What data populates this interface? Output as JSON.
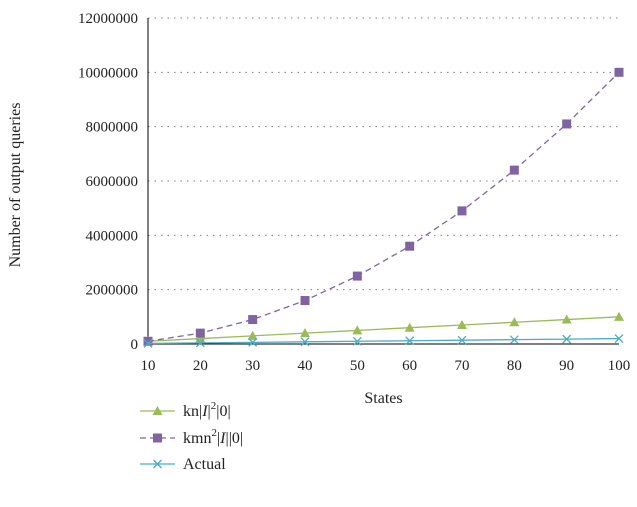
{
  "chart_data": {
    "type": "line",
    "x": [
      10,
      20,
      30,
      40,
      50,
      60,
      70,
      80,
      90,
      100
    ],
    "xlabel": "States",
    "ylabel": "Number of  output queries",
    "xlim": [
      10,
      100
    ],
    "ylim": [
      0,
      12000000
    ],
    "yticks": [
      "0",
      "2000000",
      "4000000",
      "6000000",
      "8000000",
      "10000000",
      "12000000"
    ],
    "xticks": [
      "10",
      "20",
      "30",
      "40",
      "50",
      "60",
      "70",
      "80",
      "90",
      "100"
    ],
    "grid": "horizontal dotted",
    "legend_position": "bottom",
    "series": [
      {
        "legend": {
          "pre": "kn|",
          "italic": "I",
          "mid": "|",
          "sup": "2",
          "post": "|0|"
        },
        "color": "#9bbb59",
        "marker": "triangle",
        "dash": "solid",
        "values": [
          100000,
          200000,
          300000,
          400000,
          500000,
          600000,
          700000,
          800000,
          900000,
          1000000
        ]
      },
      {
        "legend": {
          "pre": "kmn",
          "sup": "2",
          "mid": "|",
          "italic": "I",
          "post": "||0|"
        },
        "color": "#8064a2",
        "marker": "square",
        "dash": "dashed",
        "values": [
          100000,
          400000,
          900000,
          1600000,
          2500000,
          3600000,
          4900000,
          6400000,
          8100000,
          10000000
        ]
      },
      {
        "legend": {
          "text": "Actual"
        },
        "color": "#4bacc6",
        "marker": "x",
        "dash": "solid",
        "values": [
          20000,
          40000,
          60000,
          80000,
          100000,
          120000,
          140000,
          160000,
          180000,
          200000
        ]
      }
    ]
  }
}
